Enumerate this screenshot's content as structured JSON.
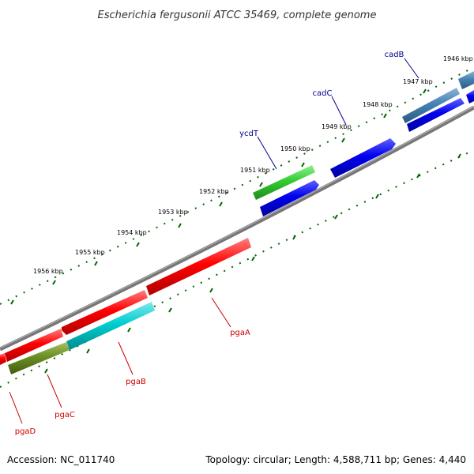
{
  "title": "Escherichia fergusonii ATCC 35469, complete genome",
  "footer": {
    "accession": "Accession: NC_011740",
    "topology": "Topology: circular; Length: 4,588,711 bp; Genes: 4,440"
  },
  "kbp_labels": [
    "1946 kbp",
    "1947 kbp",
    "1948 kbp",
    "1949 kbp",
    "1950 kbp",
    "1951 kbp",
    "1952 kbp",
    "1953 kbp",
    "1954 kbp",
    "1955 kbp",
    "1956 kbp"
  ],
  "genes": [
    {
      "name": "cadB",
      "color": "#00008b"
    },
    {
      "name": "cadC",
      "color": "#00008b"
    },
    {
      "name": "ycdT",
      "color": "#00008b"
    },
    {
      "name": "pgaA",
      "color": "#cc0000"
    },
    {
      "name": "pgaB",
      "color": "#cc0000"
    },
    {
      "name": "pgaC",
      "color": "#cc0000"
    },
    {
      "name": "pgaD",
      "color": "#cc0000"
    }
  ],
  "colors": {
    "backbone": "#808080",
    "forward_feature": "#0000ee",
    "reverse_feature": "#ee0000",
    "tick": "#006400",
    "cadB_feature": "#4682b4",
    "ycdT_feature": "#32cd32",
    "pgaB_feature": "#00ced1",
    "pgaD_feature": "#6b8e23"
  }
}
